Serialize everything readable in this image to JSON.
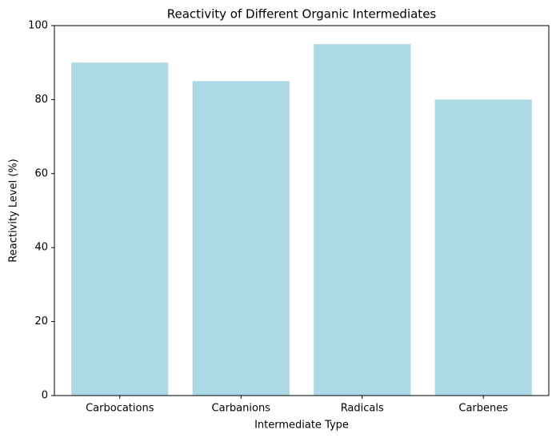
{
  "chart_data": {
    "type": "bar",
    "title": "Reactivity of Different Organic Intermediates",
    "x_label": "Intermediate Type",
    "y_label": "Reactivity Level (%)",
    "categories": [
      "Carbocations",
      "Carbanions",
      "Radicals",
      "Carbenes"
    ],
    "values": [
      90,
      85,
      95,
      80
    ],
    "color": "#add8e6",
    "ylim": [
      0,
      100
    ],
    "yticks": [
      0,
      20,
      40,
      60,
      80,
      100
    ],
    "grid": false
  }
}
